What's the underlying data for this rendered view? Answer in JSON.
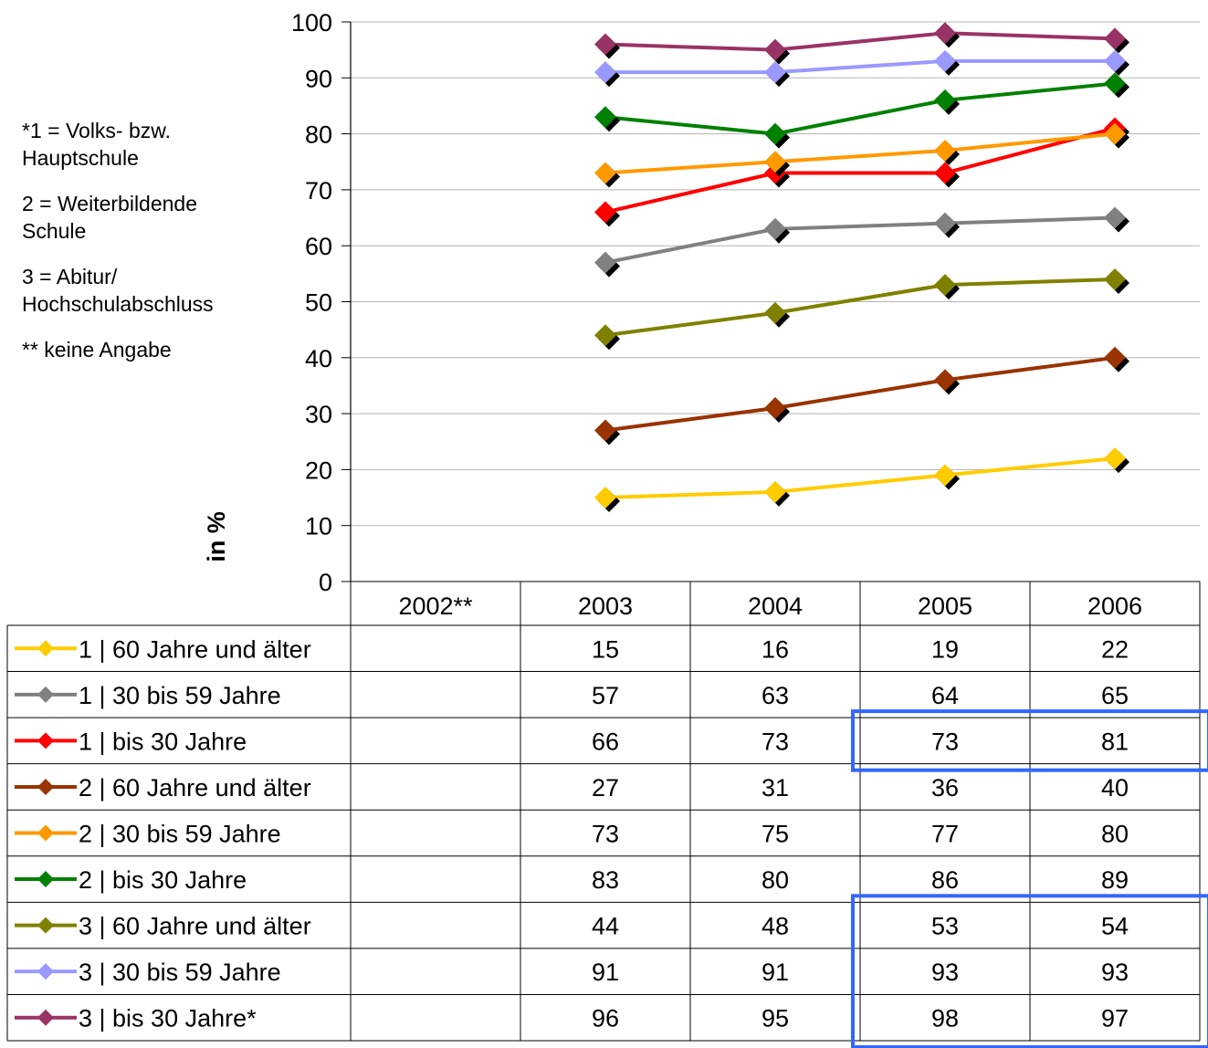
{
  "notes": [
    "*1 = Volks- bzw. Hauptschule",
    "2 = Weiterbildende Schule",
    "3 = Abitur/ Hochschulabschluss",
    "** keine Angabe"
  ],
  "chart_data": {
    "type": "line",
    "title": "",
    "xlabel": "",
    "ylabel": "in %",
    "ylim": [
      0,
      100
    ],
    "yticks": [
      0,
      10,
      20,
      30,
      40,
      50,
      60,
      70,
      80,
      90,
      100
    ],
    "grid": true,
    "legend": "data-table-left",
    "categories": [
      "2002**",
      "2003",
      "2004",
      "2005",
      "2006"
    ],
    "series": [
      {
        "name": "1 | 60 Jahre und älter",
        "color": "#FFCC00",
        "values": [
          null,
          15,
          16,
          19,
          22
        ]
      },
      {
        "name": "1 | 30 bis 59 Jahre",
        "color": "#808080",
        "values": [
          null,
          57,
          63,
          64,
          65
        ]
      },
      {
        "name": "1 | bis 30 Jahre",
        "color": "#FF0000",
        "values": [
          null,
          66,
          73,
          73,
          81
        ]
      },
      {
        "name": "2 | 60 Jahre und älter",
        "color": "#993300",
        "values": [
          null,
          27,
          31,
          36,
          40
        ]
      },
      {
        "name": "2 | 30 bis 59 Jahre",
        "color": "#FF9900",
        "values": [
          null,
          73,
          75,
          77,
          80
        ]
      },
      {
        "name": "2 | bis 30 Jahre",
        "color": "#008000",
        "values": [
          null,
          83,
          80,
          86,
          89
        ]
      },
      {
        "name": "3 | 60 Jahre und älter",
        "color": "#808000",
        "values": [
          null,
          44,
          48,
          53,
          54
        ]
      },
      {
        "name": "3 | 30 bis 59 Jahre",
        "color": "#9999FF",
        "values": [
          null,
          91,
          91,
          93,
          93
        ]
      },
      {
        "name": "3 | bis 30 Jahre*",
        "color": "#993366",
        "values": [
          null,
          96,
          95,
          98,
          97
        ]
      }
    ],
    "highlights": {
      "color": "#3366FF"
    }
  }
}
